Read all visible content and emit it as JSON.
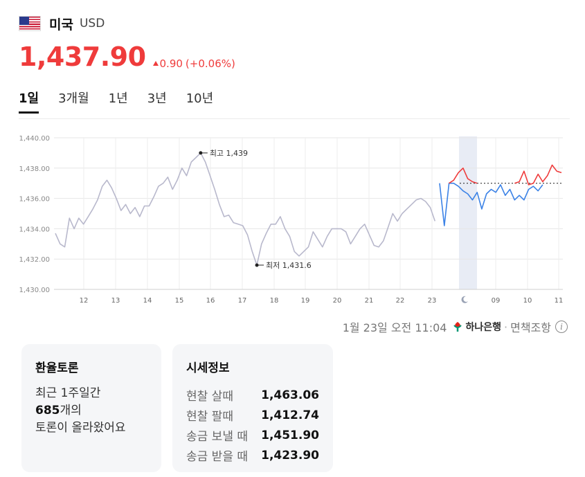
{
  "header": {
    "flag_icon": "us-flag-icon",
    "country": "미국",
    "currency": "USD"
  },
  "price": {
    "value": "1,437.90",
    "direction": "up",
    "change": "0.90",
    "change_pct": "(+0.06%)",
    "color_up": "#ef3b3b"
  },
  "tabs": [
    {
      "label": "1일",
      "active": true
    },
    {
      "label": "3개월",
      "active": false
    },
    {
      "label": "1년",
      "active": false
    },
    {
      "label": "3년",
      "active": false
    },
    {
      "label": "10년",
      "active": false
    }
  ],
  "chart_data": {
    "type": "line",
    "y_ticks": [
      "1,440.00",
      "1,438.00",
      "1,436.00",
      "1,434.00",
      "1,432.00",
      "1,430.00"
    ],
    "ylim": [
      1430,
      1440
    ],
    "x_ticks": [
      "12",
      "13",
      "14",
      "15",
      "16",
      "17",
      "18",
      "19",
      "20",
      "21",
      "22",
      "23",
      "moon",
      "09",
      "10",
      "11"
    ],
    "grid": true,
    "high_label": "최고 1,439",
    "low_label": "최저 1,431.6",
    "reference_value": 1437.0,
    "series": [
      {
        "color": "#b8b8cc",
        "points": [
          [
            0,
            1433.7
          ],
          [
            1,
            1433.0
          ],
          [
            2,
            1432.8
          ],
          [
            3,
            1434.7
          ],
          [
            4,
            1434.0
          ],
          [
            5,
            1434.7
          ],
          [
            6,
            1434.3
          ],
          [
            7,
            1434.8
          ],
          [
            8,
            1435.3
          ],
          [
            9,
            1435.9
          ],
          [
            10,
            1436.8
          ],
          [
            11,
            1437.2
          ],
          [
            12,
            1436.7
          ],
          [
            13,
            1436.0
          ],
          [
            14,
            1435.2
          ],
          [
            15,
            1435.6
          ],
          [
            16,
            1435.0
          ],
          [
            17,
            1435.4
          ],
          [
            18,
            1434.8
          ],
          [
            19,
            1435.5
          ],
          [
            20,
            1435.5
          ],
          [
            21,
            1436.1
          ],
          [
            22,
            1436.8
          ],
          [
            23,
            1437.0
          ],
          [
            24,
            1437.4
          ],
          [
            25,
            1436.6
          ],
          [
            26,
            1437.2
          ],
          [
            27,
            1438.0
          ],
          [
            28,
            1437.5
          ],
          [
            29,
            1438.4
          ],
          [
            30,
            1438.7
          ],
          [
            31,
            1439.0
          ],
          [
            32,
            1438.4
          ],
          [
            33,
            1437.5
          ],
          [
            34,
            1436.6
          ],
          [
            35,
            1435.6
          ],
          [
            36,
            1434.8
          ],
          [
            37,
            1434.9
          ],
          [
            38,
            1434.4
          ],
          [
            39,
            1434.3
          ],
          [
            40,
            1434.2
          ],
          [
            41,
            1433.6
          ],
          [
            42,
            1432.5
          ],
          [
            43,
            1431.6
          ],
          [
            44,
            1433.0
          ],
          [
            45,
            1433.7
          ],
          [
            46,
            1434.3
          ],
          [
            47,
            1434.3
          ],
          [
            48,
            1434.8
          ],
          [
            49,
            1434.0
          ],
          [
            50,
            1433.5
          ],
          [
            51,
            1432.5
          ],
          [
            52,
            1432.2
          ],
          [
            53,
            1432.5
          ],
          [
            54,
            1432.8
          ],
          [
            55,
            1433.8
          ],
          [
            56,
            1433.3
          ],
          [
            57,
            1432.8
          ],
          [
            58,
            1433.5
          ],
          [
            59,
            1434.0
          ],
          [
            60,
            1434.0
          ],
          [
            61,
            1434.0
          ],
          [
            62,
            1433.8
          ],
          [
            63,
            1433.0
          ],
          [
            64,
            1433.5
          ],
          [
            65,
            1434.0
          ],
          [
            66,
            1434.3
          ],
          [
            67,
            1433.6
          ],
          [
            68,
            1432.9
          ],
          [
            69,
            1432.8
          ],
          [
            70,
            1433.2
          ],
          [
            71,
            1434.1
          ],
          [
            72,
            1435.0
          ],
          [
            73,
            1434.5
          ],
          [
            74,
            1435.0
          ],
          [
            75,
            1435.3
          ],
          [
            76,
            1435.6
          ],
          [
            77,
            1435.9
          ],
          [
            78,
            1436.0
          ],
          [
            79,
            1435.8
          ],
          [
            80,
            1435.4
          ],
          [
            81,
            1434.5
          ]
        ]
      },
      {
        "color": "#3b82e6",
        "points": [
          [
            82,
            1437.0
          ],
          [
            83,
            1434.2
          ],
          [
            84,
            1437.0
          ],
          [
            85,
            1437.0
          ],
          [
            86,
            1436.8
          ],
          [
            87,
            1436.5
          ],
          [
            88,
            1436.3
          ],
          [
            89,
            1435.9
          ],
          [
            90,
            1436.4
          ],
          [
            91,
            1435.3
          ],
          [
            92,
            1436.3
          ],
          [
            93,
            1436.6
          ],
          [
            94,
            1436.4
          ],
          [
            95,
            1436.9
          ],
          [
            96,
            1436.2
          ],
          [
            97,
            1436.6
          ],
          [
            98,
            1435.9
          ],
          [
            99,
            1436.2
          ],
          [
            100,
            1435.9
          ],
          [
            101,
            1436.6
          ],
          [
            102,
            1436.8
          ],
          [
            103,
            1436.5
          ],
          [
            104,
            1436.9
          ]
        ]
      },
      {
        "color": "#ef3b3b",
        "points": [
          [
            84,
            1437.0
          ],
          [
            85,
            1437.2
          ],
          [
            86,
            1437.7
          ],
          [
            87,
            1438.0
          ],
          [
            88,
            1437.3
          ],
          [
            89,
            1437.1
          ],
          [
            90,
            1437.0
          ],
          [
            98,
            1437.0
          ],
          [
            99,
            1437.1
          ],
          [
            100,
            1437.8
          ],
          [
            101,
            1436.9
          ],
          [
            102,
            1437.0
          ],
          [
            103,
            1437.6
          ],
          [
            104,
            1437.1
          ],
          [
            105,
            1437.5
          ],
          [
            106,
            1438.2
          ],
          [
            107,
            1437.8
          ],
          [
            108,
            1437.7
          ]
        ]
      }
    ]
  },
  "source": {
    "datetime": "1월 23일 오전 11:04",
    "bank_icon": "hana-bank-logo-icon",
    "bank": "하나은행",
    "sep": "·",
    "disclaimer": "면책조항",
    "info_icon": "info-icon"
  },
  "discussion": {
    "title": "환율토론",
    "line1": "최근 1주일간",
    "count": "685",
    "line2_suffix": "개의",
    "line3": "토론이 올라왔어요"
  },
  "quotes": {
    "title": "시세정보",
    "rows": [
      {
        "label": "현찰 살때",
        "value": "1,463.06"
      },
      {
        "label": "현찰 팔때",
        "value": "1,412.74"
      },
      {
        "label": "송금 보낼 때",
        "value": "1,451.90"
      },
      {
        "label": "송금 받을 때",
        "value": "1,423.90"
      }
    ]
  }
}
